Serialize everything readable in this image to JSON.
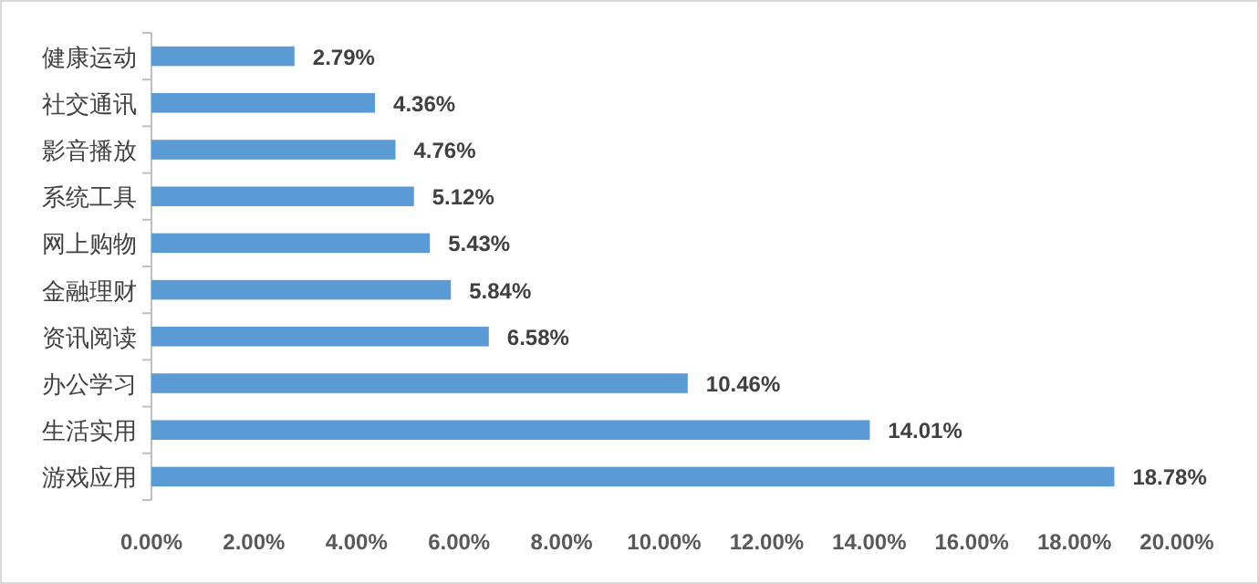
{
  "chart_data": {
    "type": "bar",
    "orientation": "horizontal",
    "categories": [
      "健康运动",
      "社交通讯",
      "影音播放",
      "系统工具",
      "网上购物",
      "金融理财",
      "资讯阅读",
      "办公学习",
      "生活实用",
      "游戏应用"
    ],
    "values": [
      2.79,
      4.36,
      4.76,
      5.12,
      5.43,
      5.84,
      6.58,
      10.46,
      14.01,
      18.78
    ],
    "value_labels": [
      "2.79%",
      "4.36%",
      "4.76%",
      "5.12%",
      "5.43%",
      "5.84%",
      "6.58%",
      "10.46%",
      "14.01%",
      "18.78%"
    ],
    "color": "#5b9bd5",
    "xlim": [
      0,
      20
    ],
    "xticks": [
      {
        "value": 0,
        "label": "0.00%"
      },
      {
        "value": 2,
        "label": "2.00%"
      },
      {
        "value": 4,
        "label": "4.00%"
      },
      {
        "value": 6,
        "label": "6.00%"
      },
      {
        "value": 8,
        "label": "8.00%"
      },
      {
        "value": 10,
        "label": "10.00%"
      },
      {
        "value": 12,
        "label": "12.00%"
      },
      {
        "value": 14,
        "label": "14.00%"
      },
      {
        "value": 16,
        "label": "16.00%"
      },
      {
        "value": 18,
        "label": "18.00%"
      },
      {
        "value": 20,
        "label": "20.00%"
      }
    ],
    "grid": false
  }
}
